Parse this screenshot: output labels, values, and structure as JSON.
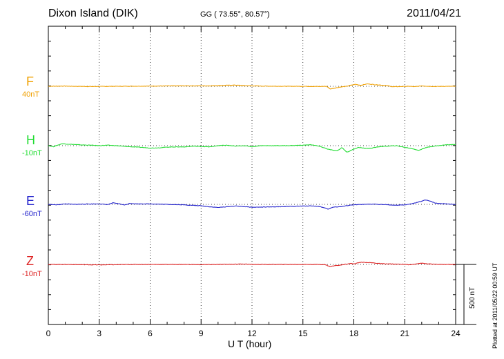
{
  "header": {
    "station": "Dixon Island (DIK)",
    "coords": "GG ( 73.55°,  80.57°)",
    "date": "2011/04/21"
  },
  "footer": {
    "plotted": "Plotted at 2011/05/22 00:59 UT"
  },
  "scale_bar": {
    "label": "500 nT",
    "value_nT": 500
  },
  "chart_data": {
    "type": "line",
    "xlabel": "U T (hour)",
    "xlim": [
      0,
      24
    ],
    "xticks": [
      0,
      3,
      6,
      9,
      12,
      15,
      18,
      21,
      24
    ],
    "grid": "dotted vertical every 3 h, dotted horizontal baselines per component",
    "series": [
      {
        "name": "F",
        "baseline": "40nT",
        "color": "#f0a000",
        "points": [
          [
            0,
            0
          ],
          [
            0.8,
            2
          ],
          [
            1.5,
            0
          ],
          [
            2.5,
            -2
          ],
          [
            4,
            0
          ],
          [
            6,
            2
          ],
          [
            8,
            4
          ],
          [
            9.5,
            4
          ],
          [
            10.5,
            8
          ],
          [
            11,
            10
          ],
          [
            11.5,
            6
          ],
          [
            12.5,
            2
          ],
          [
            14,
            0
          ],
          [
            15,
            0
          ],
          [
            16,
            -2
          ],
          [
            16.4,
            0
          ],
          [
            16.6,
            -22
          ],
          [
            16.9,
            -14
          ],
          [
            17.2,
            -6
          ],
          [
            17.5,
            -2
          ],
          [
            17.8,
            8
          ],
          [
            18.1,
            16
          ],
          [
            18.4,
            8
          ],
          [
            18.8,
            20
          ],
          [
            19.2,
            14
          ],
          [
            19.6,
            10
          ],
          [
            20,
            4
          ],
          [
            20.3,
            -4
          ],
          [
            20.8,
            -2
          ],
          [
            21.3,
            0
          ],
          [
            21.6,
            -4
          ],
          [
            22,
            4
          ],
          [
            22.4,
            0
          ],
          [
            22.8,
            -2
          ],
          [
            23.5,
            0
          ],
          [
            24,
            0
          ]
        ]
      },
      {
        "name": "H",
        "baseline": "-10nT",
        "color": "#22dd33",
        "points": [
          [
            0,
            0
          ],
          [
            0.3,
            -8
          ],
          [
            0.8,
            16
          ],
          [
            1.5,
            10
          ],
          [
            2,
            6
          ],
          [
            2.5,
            4
          ],
          [
            3,
            0
          ],
          [
            3.5,
            4
          ],
          [
            4,
            0
          ],
          [
            4.5,
            -6
          ],
          [
            5,
            -10
          ],
          [
            5.5,
            -14
          ],
          [
            6,
            -20
          ],
          [
            6.5,
            -18
          ],
          [
            7,
            -12
          ],
          [
            7.5,
            -10
          ],
          [
            8,
            -10
          ],
          [
            8.5,
            -4
          ],
          [
            9,
            -6
          ],
          [
            9.5,
            -10
          ],
          [
            10,
            0
          ],
          [
            10.5,
            4
          ],
          [
            11,
            -4
          ],
          [
            11.5,
            0
          ],
          [
            12,
            -8
          ],
          [
            12.5,
            0
          ],
          [
            13,
            0
          ],
          [
            14,
            0
          ],
          [
            15,
            4
          ],
          [
            15.5,
            8
          ],
          [
            16,
            -6
          ],
          [
            16.5,
            -30
          ],
          [
            17,
            -45
          ],
          [
            17.3,
            -16
          ],
          [
            17.6,
            -55
          ],
          [
            18,
            -28
          ],
          [
            18.3,
            -14
          ],
          [
            18.6,
            -22
          ],
          [
            19,
            -22
          ],
          [
            19.5,
            -8
          ],
          [
            20,
            -4
          ],
          [
            20.5,
            0
          ],
          [
            21,
            -14
          ],
          [
            21.5,
            -26
          ],
          [
            21.8,
            -40
          ],
          [
            22.2,
            -18
          ],
          [
            22.6,
            -6
          ],
          [
            23,
            0
          ],
          [
            23.5,
            8
          ],
          [
            24,
            10
          ]
        ]
      },
      {
        "name": "E",
        "baseline": "-60nT",
        "color": "#2222cc",
        "points": [
          [
            0,
            0
          ],
          [
            0.5,
            -4
          ],
          [
            1,
            4
          ],
          [
            1.5,
            0
          ],
          [
            2,
            2
          ],
          [
            3,
            4
          ],
          [
            3.5,
            -2
          ],
          [
            3.8,
            12
          ],
          [
            4.2,
            4
          ],
          [
            4.5,
            -6
          ],
          [
            4.8,
            8
          ],
          [
            5.2,
            4
          ],
          [
            6,
            4
          ],
          [
            7,
            0
          ],
          [
            8,
            -4
          ],
          [
            9,
            -12
          ],
          [
            9.5,
            -20
          ],
          [
            10,
            -26
          ],
          [
            10.5,
            -20
          ],
          [
            11,
            -14
          ],
          [
            11.5,
            -18
          ],
          [
            12,
            -24
          ],
          [
            13,
            -22
          ],
          [
            14,
            -18
          ],
          [
            15,
            -14
          ],
          [
            15.5,
            -12
          ],
          [
            16,
            -18
          ],
          [
            16.5,
            -40
          ],
          [
            16.8,
            -22
          ],
          [
            17.2,
            -20
          ],
          [
            17.8,
            -6
          ],
          [
            18.3,
            -2
          ],
          [
            18.7,
            0
          ],
          [
            19.2,
            2
          ],
          [
            19.8,
            -2
          ],
          [
            20.5,
            -8
          ],
          [
            21,
            -4
          ],
          [
            21.4,
            4
          ],
          [
            21.8,
            18
          ],
          [
            22.2,
            36
          ],
          [
            22.5,
            28
          ],
          [
            22.8,
            10
          ],
          [
            23.2,
            6
          ],
          [
            24,
            0
          ]
        ]
      },
      {
        "name": "Z",
        "baseline": "-10nT",
        "color": "#dd2222",
        "points": [
          [
            0,
            0
          ],
          [
            1,
            0
          ],
          [
            2,
            -2
          ],
          [
            3,
            -4
          ],
          [
            4,
            -2
          ],
          [
            5,
            0
          ],
          [
            6,
            0
          ],
          [
            8,
            0
          ],
          [
            9,
            -2
          ],
          [
            10,
            0
          ],
          [
            11,
            2
          ],
          [
            11.5,
            4
          ],
          [
            12,
            0
          ],
          [
            13,
            0
          ],
          [
            14,
            0
          ],
          [
            15,
            0
          ],
          [
            16,
            0
          ],
          [
            16.3,
            -2
          ],
          [
            16.6,
            -18
          ],
          [
            16.9,
            -10
          ],
          [
            17.2,
            -6
          ],
          [
            17.5,
            2
          ],
          [
            17.8,
            8
          ],
          [
            18,
            4
          ],
          [
            18.4,
            18
          ],
          [
            18.8,
            16
          ],
          [
            19.2,
            12
          ],
          [
            19.6,
            6
          ],
          [
            20,
            4
          ],
          [
            20.5,
            2
          ],
          [
            21,
            2
          ],
          [
            21.3,
            -4
          ],
          [
            21.7,
            6
          ],
          [
            22,
            10
          ],
          [
            22.4,
            4
          ],
          [
            23,
            0
          ],
          [
            24,
            0
          ]
        ]
      }
    ]
  }
}
